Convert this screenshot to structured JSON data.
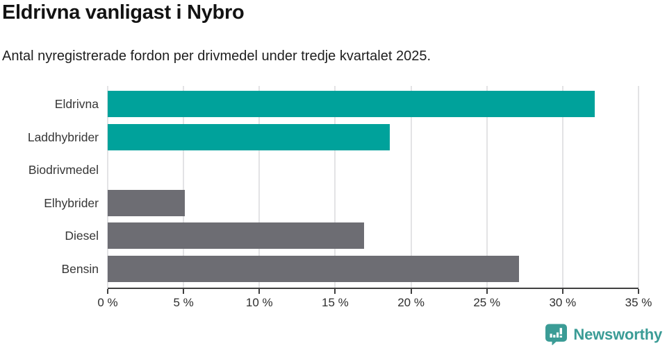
{
  "header": {
    "title": "Eldrivna vanligast i Nybro",
    "subtitle": "Antal nyregistrerade fordon per drivmedel under tredje kvartalet 2025."
  },
  "chart_data": {
    "type": "bar",
    "orientation": "horizontal",
    "title": "Eldrivna vanligast i Nybro",
    "subtitle": "Antal nyregistrerade fordon per drivmedel under tredje kvartalet 2025.",
    "categories": [
      "Eldrivna",
      "Laddhybrider",
      "Biodrivmedel",
      "Elhybrider",
      "Diesel",
      "Bensin"
    ],
    "values": [
      32.1,
      18.6,
      0,
      5.1,
      16.9,
      27.1
    ],
    "bar_colors": [
      "#00a29b",
      "#00a29b",
      "#6d6d73",
      "#6d6d73",
      "#6d6d73",
      "#6d6d73"
    ],
    "xlabel": "",
    "ylabel": "",
    "xlim": [
      0,
      35
    ],
    "xticks": [
      0,
      5,
      10,
      15,
      20,
      25,
      30,
      35
    ],
    "tick_suffix": " %",
    "grid": true,
    "legend": "none"
  },
  "colors": {
    "teal": "#00a29b",
    "gray": "#6d6d73",
    "grid": "#e3e3e5",
    "axis": "#3f3f3f",
    "logo": "#3b9c96"
  },
  "footer": {
    "brand": "Newsworthy"
  }
}
